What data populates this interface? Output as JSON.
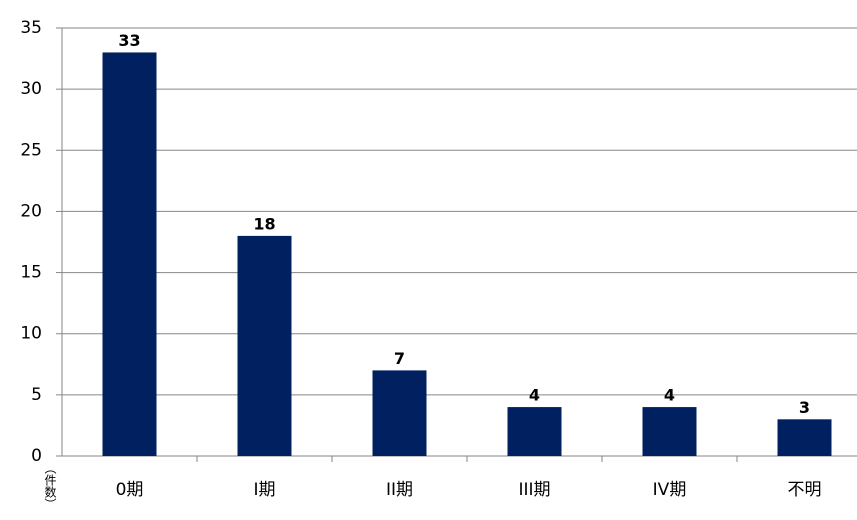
{
  "chart_data": {
    "type": "bar",
    "y_label": "（件数）",
    "categories": [
      "0期",
      "I期",
      "II期",
      "III期",
      "IV期",
      "不明"
    ],
    "values": [
      33,
      18,
      7,
      4,
      4,
      3
    ],
    "color": "#002060",
    "ylim": [
      0,
      35
    ],
    "yticks": [
      0,
      5,
      10,
      15,
      20,
      25,
      30,
      35
    ],
    "grid": true
  }
}
